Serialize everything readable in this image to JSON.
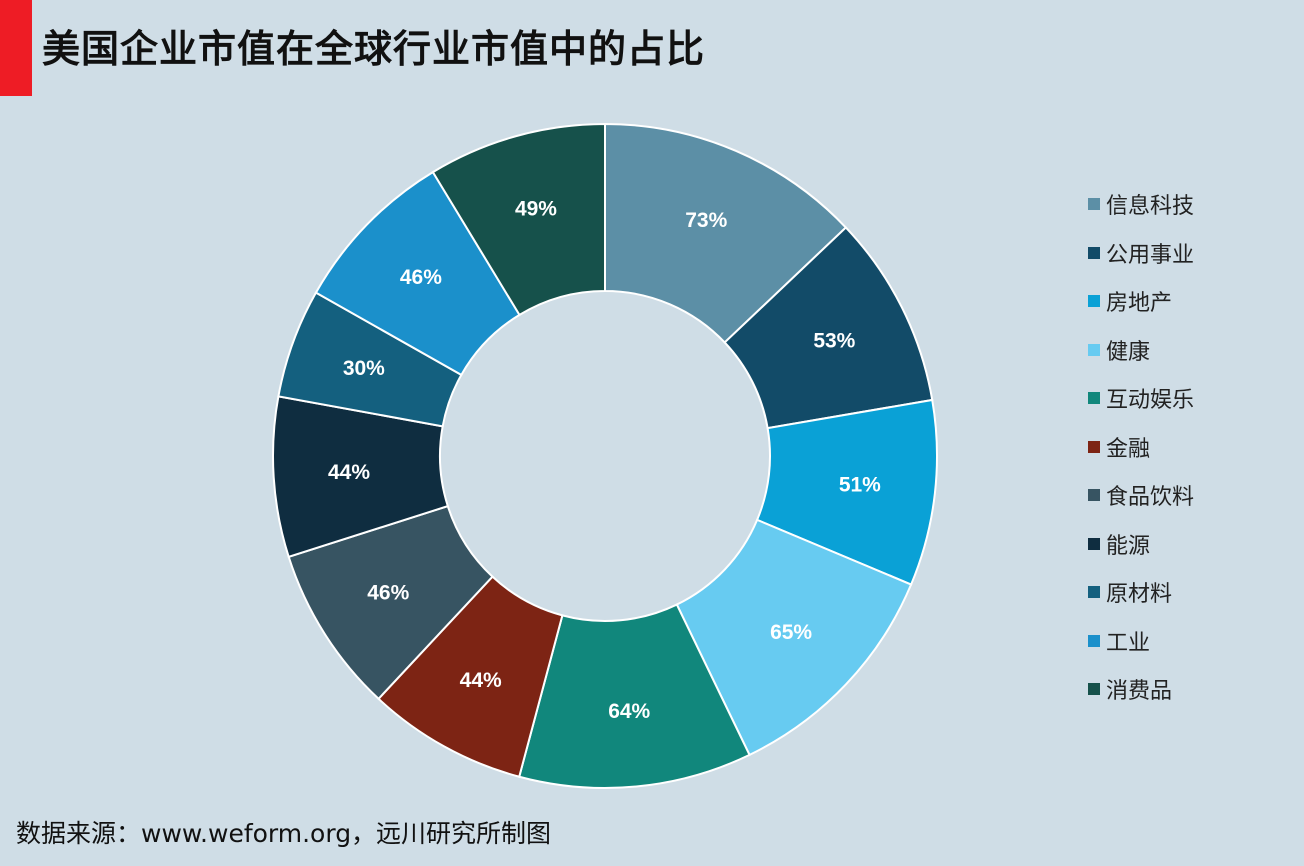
{
  "header": {
    "title": "美国企业市值在全球行业市值中的占比"
  },
  "chart_data": {
    "type": "pie",
    "donut": true,
    "categories": [
      "信息科技",
      "公用事业",
      "房地产",
      "健康",
      "互动娱乐",
      "金融",
      "食品饮料",
      "能源",
      "原材料",
      "工业",
      "消费品"
    ],
    "values": [
      73,
      53,
      51,
      65,
      64,
      44,
      46,
      44,
      30,
      46,
      49
    ],
    "labels": [
      "73%",
      "53%",
      "51%",
      "65%",
      "64%",
      "44%",
      "46%",
      "44%",
      "30%",
      "46%",
      "49%"
    ],
    "colors": [
      "#5c8fa6",
      "#124b68",
      "#0aa1d6",
      "#67cbf1",
      "#11877c",
      "#7d2414",
      "#375462",
      "#0f2d40",
      "#14607f",
      "#1b90cb",
      "#16514b"
    ],
    "legend_position": "right"
  },
  "footer": {
    "source": "数据来源：www.weform.org，远川研究所制图"
  }
}
